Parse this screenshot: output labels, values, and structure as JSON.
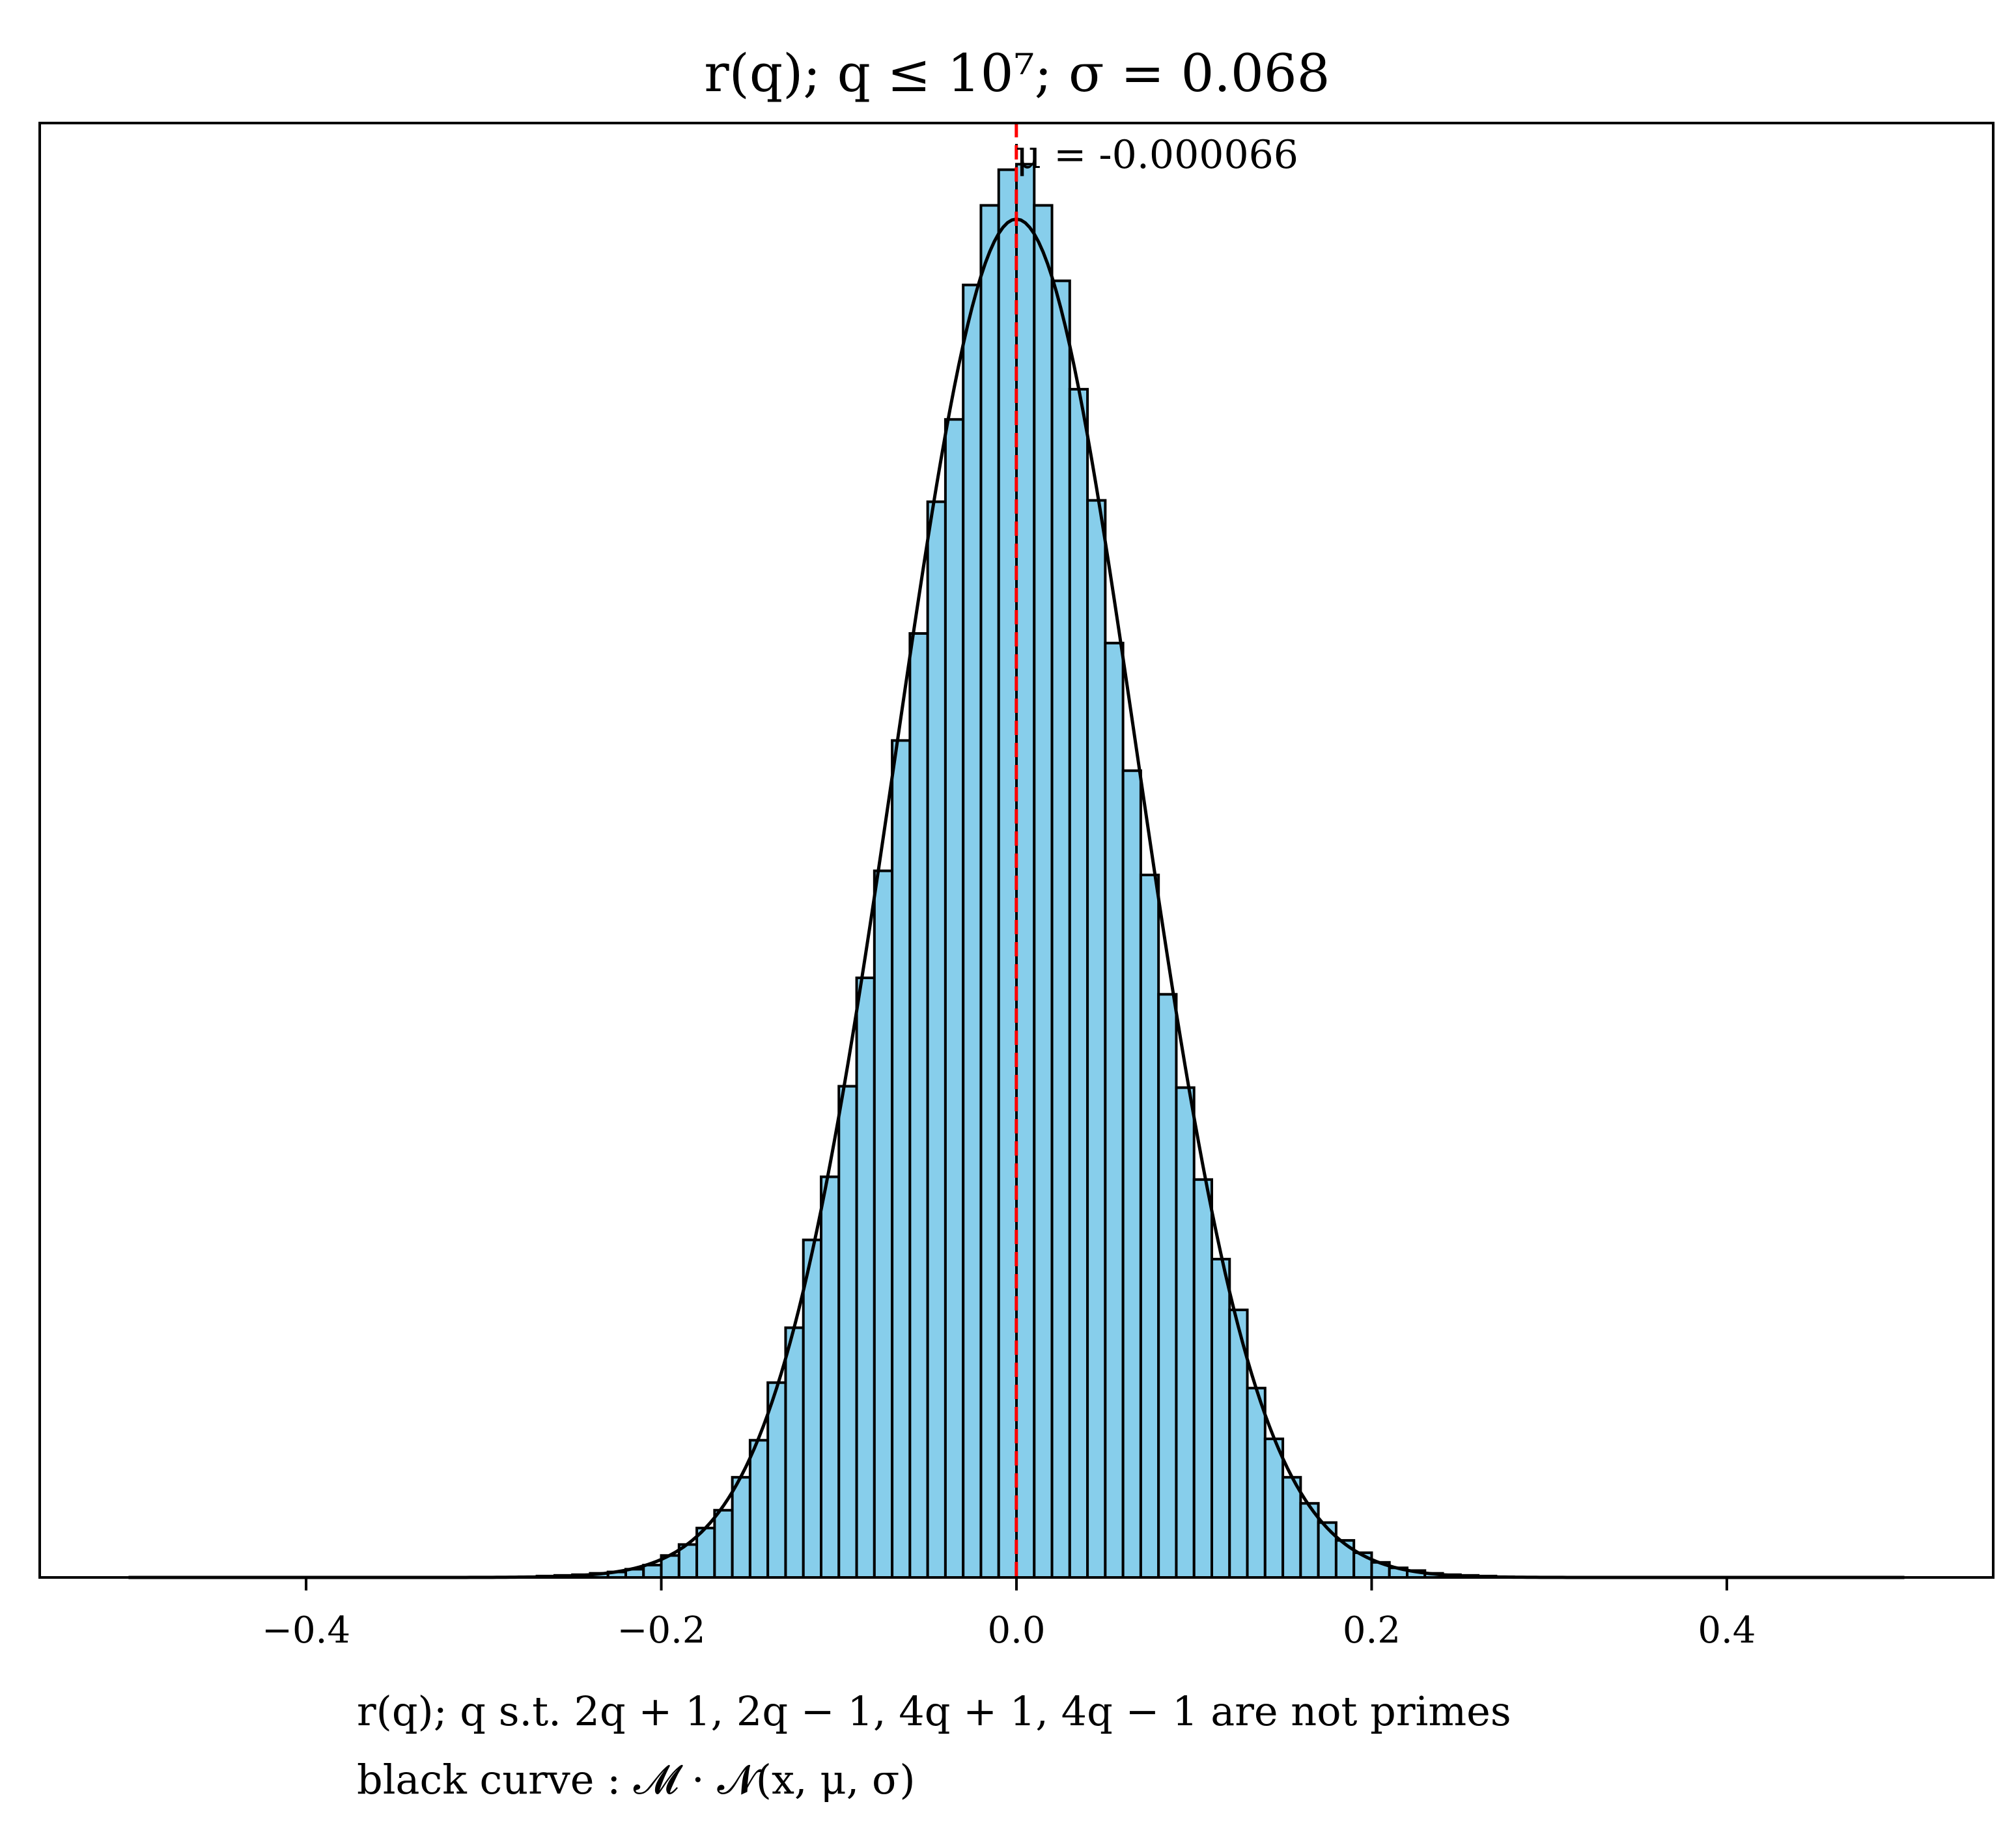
{
  "chart_data": {
    "type": "bar",
    "title": "r(q); q ≤ 10⁷; σ = 0.068",
    "xlabel_lines": [
      "r(q); q s.t. 2q + 1, 2q − 1, 4q + 1, 4q − 1 are not primes",
      "black curve : 𝓜 · 𝓝(x, μ, σ)"
    ],
    "mean_label": "μ = -0.000066",
    "mean": -6.6e-05,
    "sigma": 0.068,
    "xlim": [
      -0.55,
      0.55
    ],
    "ylim": [
      0,
      1.06
    ],
    "x_ticks": [
      -0.4,
      -0.2,
      0.0,
      0.2,
      0.4
    ],
    "x_tick_labels": [
      "−0.4",
      "−0.2",
      "0.0",
      "0.2",
      "0.4"
    ],
    "y_ticks_shown": false,
    "bin_width": 0.01,
    "curve_range": [
      -0.5,
      0.5
    ],
    "curve_peak": 0.99,
    "bins_left_edges": [
      -0.28,
      -0.27,
      -0.26,
      -0.25,
      -0.24,
      -0.23,
      -0.22,
      -0.21,
      -0.2,
      -0.19,
      -0.18,
      -0.17,
      -0.16,
      -0.15,
      -0.14,
      -0.13,
      -0.12,
      -0.11,
      -0.1,
      -0.09,
      -0.08,
      -0.07,
      -0.06,
      -0.05,
      -0.04,
      -0.03,
      -0.02,
      -0.01,
      0.0,
      0.01,
      0.02,
      0.03,
      0.04,
      0.05,
      0.06,
      0.07,
      0.08,
      0.09,
      0.1,
      0.11,
      0.12,
      0.13,
      0.14,
      0.15,
      0.16,
      0.17,
      0.18,
      0.19,
      0.2,
      0.21,
      0.22,
      0.23,
      0.24,
      0.25,
      0.26,
      0.27
    ],
    "values": [
      0.0005,
      0.001,
      0.0015,
      0.002,
      0.003,
      0.004,
      0.006,
      0.009,
      0.016,
      0.024,
      0.036,
      0.049,
      0.073,
      0.1,
      0.142,
      0.182,
      0.246,
      0.292,
      0.358,
      0.437,
      0.515,
      0.61,
      0.688,
      0.784,
      0.844,
      0.942,
      1.0,
      1.026,
      1.03,
      1.0,
      0.945,
      0.866,
      0.785,
      0.681,
      0.588,
      0.512,
      0.425,
      0.357,
      0.29,
      0.232,
      0.195,
      0.138,
      0.101,
      0.073,
      0.054,
      0.04,
      0.027,
      0.018,
      0.011,
      0.007,
      0.005,
      0.003,
      0.002,
      0.0015,
      0.001,
      0.0005
    ],
    "colors": {
      "bar_fill": "#87CEEB",
      "bar_edge": "#000000",
      "curve": "#000000",
      "mean_line": "#ff0000",
      "zero_line": "#000000"
    }
  }
}
